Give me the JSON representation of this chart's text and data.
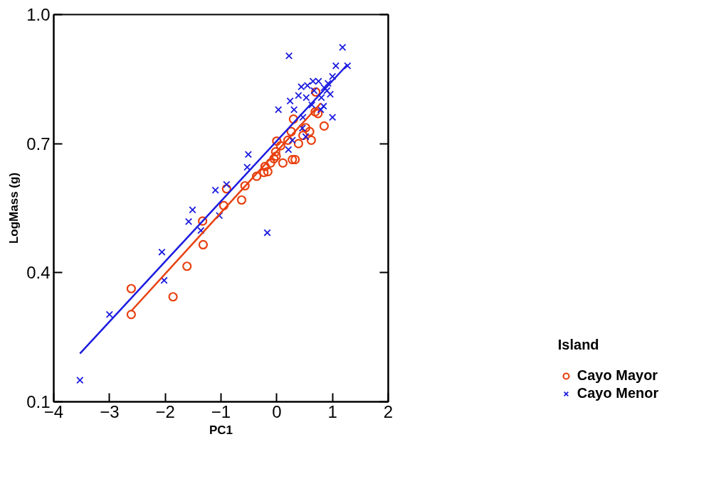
{
  "chart_data": {
    "type": "scatter",
    "xlabel": "PC1",
    "ylabel": "LogMass (g)",
    "legend_title": "Island",
    "legend": "right",
    "grid": false,
    "xlim": [
      -4,
      2
    ],
    "xticks": [
      -4,
      -3,
      -2,
      -1,
      0,
      1,
      2
    ],
    "ylim": [
      0.1,
      1.0
    ],
    "yticks": [
      0.1,
      0.4,
      0.7,
      {
        "value": 1.0,
        "label": "1.0"
      }
    ],
    "series": [
      {
        "name": "Cayo Mayor",
        "color": "#e8400f",
        "marker": "circle",
        "x": [
          -2.61,
          -2.61,
          -1.86,
          -1.61,
          -1.32,
          -1.33,
          -0.95,
          -0.9,
          -0.63,
          -0.57,
          -0.36,
          -0.21,
          -0.16,
          -0.23,
          -0.11,
          -0.05,
          -0.01,
          -0.02,
          0.0,
          0.07,
          0.11,
          0.2,
          0.28,
          0.33,
          0.26,
          0.3,
          0.39,
          0.47,
          0.52,
          0.59,
          0.69,
          0.74,
          0.7,
          0.85,
          0.62
        ],
        "values": [
          0.363,
          0.303,
          0.344,
          0.415,
          0.465,
          0.52,
          0.556,
          0.595,
          0.569,
          0.602,
          0.624,
          0.647,
          0.635,
          0.633,
          0.655,
          0.665,
          0.671,
          0.681,
          0.706,
          0.695,
          0.655,
          0.708,
          0.663,
          0.663,
          0.728,
          0.757,
          0.7,
          0.719,
          0.737,
          0.728,
          0.774,
          0.77,
          0.82,
          0.741,
          0.708
        ]
      },
      {
        "name": "Cayo Menor",
        "color": "#1c1ce0",
        "marker": "cross",
        "x": [
          -3.53,
          -3.0,
          -2.06,
          -2.02,
          -1.58,
          -1.51,
          -1.36,
          -1.1,
          -1.03,
          -0.9,
          -0.51,
          -0.53,
          -0.17,
          0.03,
          0.22,
          0.24,
          0.31,
          0.28,
          0.44,
          0.39,
          0.53,
          0.55,
          0.65,
          0.75,
          0.67,
          0.8,
          0.85,
          0.92,
          1.0,
          1.06,
          1.18,
          1.27,
          1.0,
          0.84,
          0.63,
          0.47,
          0.52,
          0.46,
          0.21,
          0.79,
          0.96,
          0.9
        ],
        "values": [
          0.15,
          0.303,
          0.448,
          0.382,
          0.519,
          0.546,
          0.498,
          0.592,
          0.533,
          0.605,
          0.675,
          0.645,
          0.493,
          0.779,
          0.904,
          0.799,
          0.779,
          0.708,
          0.832,
          0.812,
          0.807,
          0.835,
          0.845,
          0.845,
          0.823,
          0.807,
          0.83,
          0.84,
          0.856,
          0.881,
          0.924,
          0.881,
          0.761,
          0.787,
          0.79,
          0.761,
          0.716,
          0.736,
          0.686,
          0.779,
          0.815,
          0.823
        ]
      },
      {
        "type": "line",
        "color": "#e8400f",
        "x": [
          -2.61,
          0.79
        ],
        "values": [
          0.311,
          0.794
        ]
      },
      {
        "type": "line",
        "color": "#1c1ce0",
        "x": [
          -3.53,
          1.27
        ],
        "values": [
          0.212,
          0.884
        ]
      }
    ]
  }
}
